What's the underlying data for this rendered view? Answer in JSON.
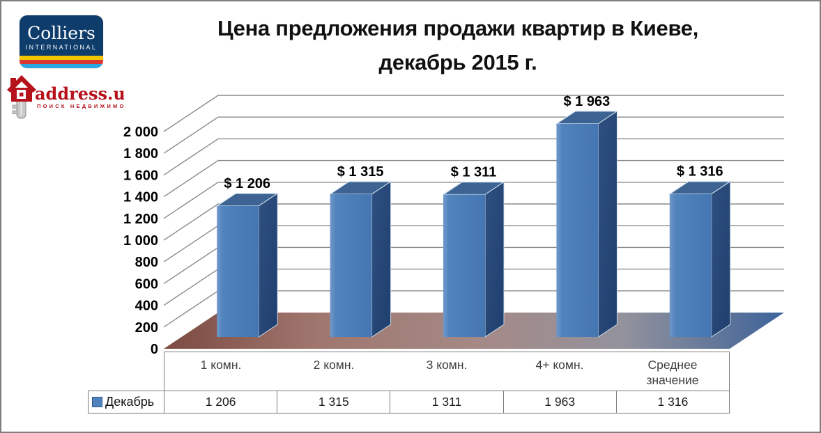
{
  "window": {
    "background": "#ffffff",
    "border_color": "#7e7e7e"
  },
  "branding": {
    "colliers": {
      "wordmark": "Colliers",
      "subtitle": "INTERNATIONAL",
      "panel_color": "#0e3c6b",
      "stripe_colors": [
        "#f2c500",
        "#dc3832",
        "#2aa7df"
      ]
    },
    "address_ua": {
      "wordmark": "address.ua",
      "tagline": "поиск недвижимости",
      "brand_color": "#b5121b"
    }
  },
  "title": {
    "line1": "Цена предложения продажи квартир в Киеве,",
    "line2": "декабрь 2015 г."
  },
  "chart_data": {
    "type": "bar",
    "style": "3d-column",
    "title": "Цена предложения продажи квартир в Киеве, декабрь 2015 г.",
    "categories": [
      "1 комн.",
      "2 комн.",
      "3 комн.",
      "4+ комн.",
      "Среднее значение"
    ],
    "series": [
      {
        "name": "Декабрь",
        "values": [
          1206,
          1315,
          1311,
          1963,
          1316
        ]
      }
    ],
    "data_labels": [
      "$ 1 206",
      "$ 1 315",
      "$ 1 311",
      "$ 1 963",
      "$ 1 316"
    ],
    "ylim": [
      0,
      2000
    ],
    "ytick_interval": 200,
    "ytick_labels": [
      "0",
      "200",
      "400",
      "600",
      "800",
      "1 000",
      "1 200",
      "1 400",
      "1 600",
      "1 800",
      "2 000"
    ],
    "grid": true,
    "legend_position": "bottom-table",
    "bar_color": "#4f81bd",
    "floor_colors": [
      "#7c4a41",
      "#a0776f",
      "#a48a87",
      "#93929d",
      "#3d639c"
    ]
  },
  "data_table": {
    "row_label": "Декабрь",
    "values": [
      "1 206",
      "1 315",
      "1 311",
      "1 963",
      "1 316"
    ]
  }
}
